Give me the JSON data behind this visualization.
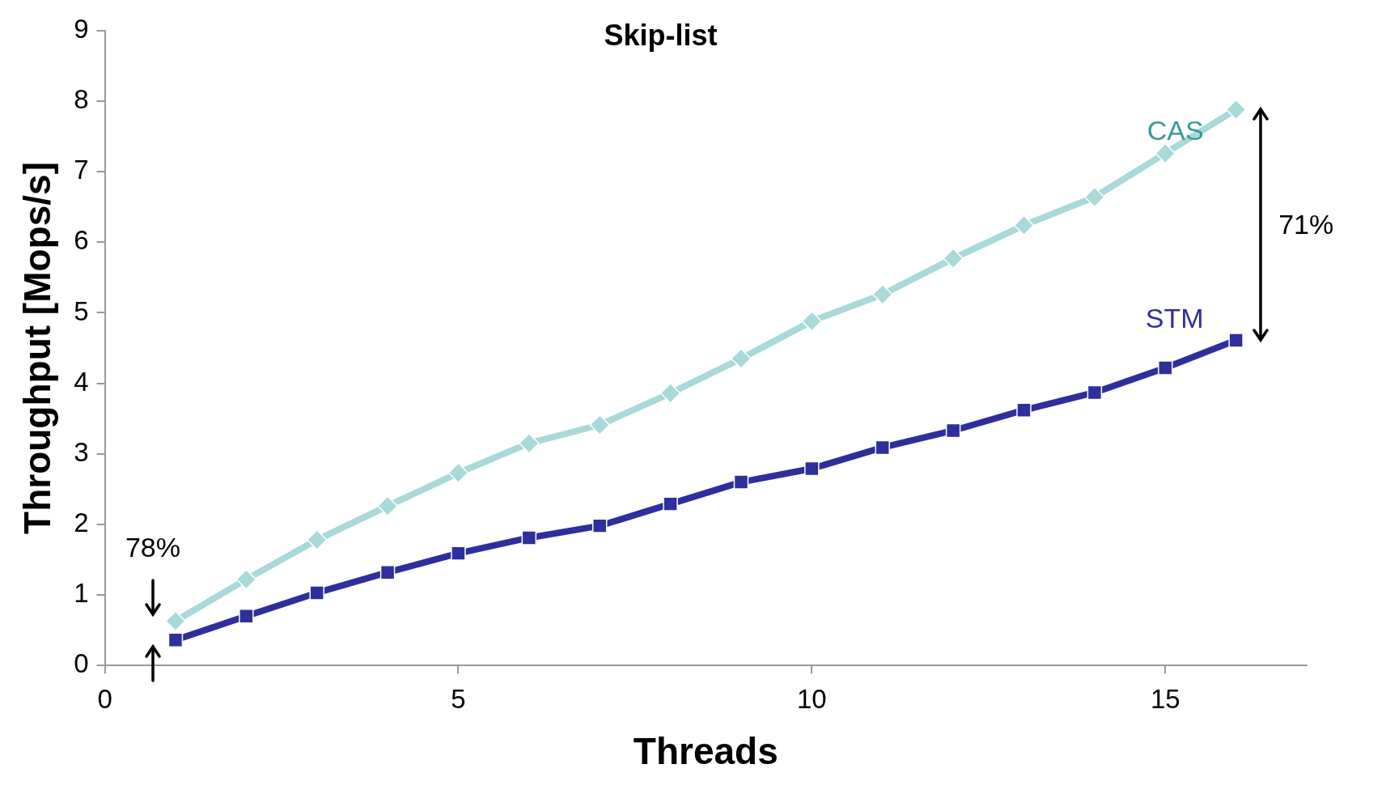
{
  "chart_data": {
    "type": "line",
    "title": "Skip-list",
    "xlabel": "Threads",
    "ylabel": "Throughput [Mops/s]",
    "x": [
      1,
      2,
      3,
      4,
      5,
      6,
      7,
      8,
      9,
      10,
      11,
      12,
      13,
      14,
      15,
      16
    ],
    "series": [
      {
        "name": "CAS",
        "color": "#a9d9d9",
        "marker": "diamond",
        "values": [
          0.63,
          1.22,
          1.78,
          2.26,
          2.73,
          3.15,
          3.41,
          3.86,
          4.35,
          4.88,
          5.26,
          5.77,
          6.24,
          6.64,
          7.26,
          7.88
        ]
      },
      {
        "name": "STM",
        "color": "#2e2e9c",
        "marker": "square",
        "values": [
          0.36,
          0.7,
          1.03,
          1.32,
          1.59,
          1.81,
          1.98,
          2.29,
          2.6,
          2.79,
          3.09,
          3.33,
          3.62,
          3.87,
          4.22,
          4.61
        ]
      }
    ],
    "annotations": [
      "78%",
      "71%"
    ],
    "xlim": [
      0,
      17
    ],
    "xticks": [
      0,
      5,
      10,
      15
    ],
    "ylim": [
      0,
      9
    ],
    "yticks": [
      0,
      1,
      2,
      3,
      4,
      5,
      6,
      7,
      8,
      9
    ],
    "grid": false,
    "legend": false
  }
}
